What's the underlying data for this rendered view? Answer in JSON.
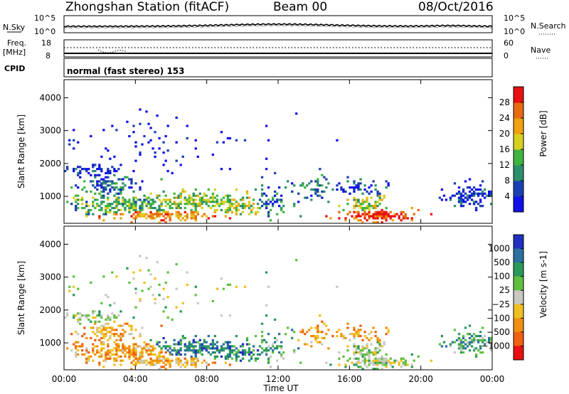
{
  "header": {
    "title": "Zhongshan Station (fitACF)",
    "beam": "Beam 00",
    "date": "08/Oct/2016"
  },
  "top_panels": {
    "nsky_label": "N.Sky",
    "nsky_ticks": [
      "10^5",
      "10^0"
    ],
    "nsearch_label": "N.Search",
    "nsearch_ticks": [
      "10^5",
      "10^0"
    ],
    "freq_label": "Freq.",
    "freq_unit": "[MHz]",
    "freq_ticks": [
      "18",
      "8"
    ],
    "nave_label": "Nave",
    "nave_ticks": [
      "60",
      "0"
    ],
    "cpid_label": "CPID",
    "cpid_value": "normal (fast stereo) 153"
  },
  "chart_data": [
    {
      "type": "heatmap",
      "title": "",
      "ylabel": "Slant Range [km]",
      "yticks": [
        1000,
        2000,
        3000,
        4000
      ],
      "ylim": [
        180,
        4550
      ],
      "xlim": [
        0,
        24
      ],
      "colorbar": {
        "label": "Power [dB]",
        "ticks": [
          "4",
          "8",
          "12",
          "16",
          "20",
          "24",
          "28"
        ],
        "colors": [
          "#1010e8",
          "#1a3fb0",
          "#2a8f6a",
          "#3fb53f",
          "#d8d020",
          "#f0a010",
          "#e86a10",
          "#e81010"
        ]
      }
    },
    {
      "type": "heatmap",
      "title": "",
      "ylabel": "Slant Range [km]",
      "yticks": [
        1000,
        2000,
        3000,
        4000
      ],
      "ylim": [
        180,
        4550
      ],
      "xlim": [
        0,
        24
      ],
      "colorbar": {
        "label": "Velocity [m s-1]",
        "ticks": [
          "1000",
          "500",
          "100",
          "25",
          "−25",
          "−100",
          "−500",
          "−1000"
        ],
        "colors": [
          "#2030c0",
          "#2a70a0",
          "#2a9a5a",
          "#60c040",
          "#c8c8c0",
          "#f0c020",
          "#f09010",
          "#f06010",
          "#e81010"
        ]
      }
    }
  ],
  "x_axis": {
    "ticks": [
      "00:00",
      "04:00",
      "08:00",
      "12:00",
      "16:00",
      "20:00",
      "00:00"
    ],
    "label": "Time UT"
  }
}
